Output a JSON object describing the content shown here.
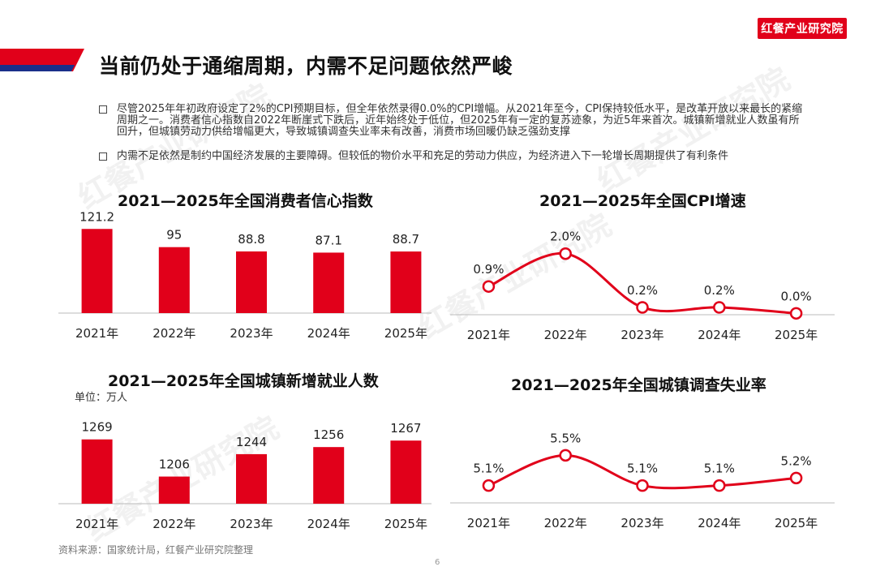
{
  "header": {
    "logo_text": "红餐产业研究院",
    "page_title": "当前仍处于通缩周期，内需不足问题依然严峻"
  },
  "bullets": [
    "尽管2025年年初政府设定了2%的CPI预期目标，但全年依然录得0.0%的CPI增幅。从2021年至今，CPI保持较低水平，是改革开放以来最长的紧缩周期之一。消费者信心指数自2022年断崖式下跌后，近年始终处于低位，但2025年有一定的复苏迹象，为近5年来首次。城镇新增就业人数虽有所回升，但城镇劳动力供给增幅更大，导致城镇调查失业率未有改善，消费市场回暖仍缺乏强劲支撑",
    "内需不足依然是制约中国经济发展的主要障碍。但较低的物价水平和充足的劳动力供应，为经济进入下一轮增长周期提供了有利条件"
  ],
  "chart_data": [
    {
      "id": "consumer-confidence",
      "type": "bar",
      "title": "2021—2025年全国消费者信心指数",
      "categories": [
        "2021年",
        "2022年",
        "2023年",
        "2024年",
        "2025年"
      ],
      "values": [
        121.2,
        95,
        88.8,
        87.1,
        88.7
      ],
      "value_labels": [
        "121.2",
        "95",
        "88.8",
        "87.1",
        "88.7"
      ],
      "ylim": [
        0,
        125
      ],
      "color": "#e1001a"
    },
    {
      "id": "cpi-growth",
      "type": "line",
      "title": "2021—2025年全国CPI增速",
      "categories": [
        "2021年",
        "2022年",
        "2023年",
        "2024年",
        "2025年"
      ],
      "values": [
        0.9,
        2.0,
        0.2,
        0.2,
        0.0
      ],
      "value_labels": [
        "0.9%",
        "2.0%",
        "0.2%",
        "0.2%",
        "0.0%"
      ],
      "ylim": [
        -0.1,
        2.4
      ],
      "color": "#e1001a"
    },
    {
      "id": "new-urban-jobs",
      "type": "bar",
      "title": "2021—2025年全国城镇新增就业人数",
      "unit": "单位：万人",
      "categories": [
        "2021年",
        "2022年",
        "2023年",
        "2024年",
        "2025年"
      ],
      "values": [
        1269,
        1206,
        1244,
        1256,
        1267
      ],
      "value_labels": [
        "1269",
        "1206",
        "1244",
        "1256",
        "1267"
      ],
      "ylim": [
        1160,
        1270
      ],
      "color": "#e1001a"
    },
    {
      "id": "urban-unemployment",
      "type": "line",
      "title": "2021—2025年全国城镇调查失业率",
      "categories": [
        "2021年",
        "2022年",
        "2023年",
        "2024年",
        "2025年"
      ],
      "values": [
        5.1,
        5.5,
        5.1,
        5.1,
        5.2
      ],
      "value_labels": [
        "5.1%",
        "5.5%",
        "5.1%",
        "5.1%",
        "5.2%"
      ],
      "ylim": [
        4.85,
        5.75
      ],
      "color": "#e1001a"
    }
  ],
  "footer": {
    "source": "资料来源：国家统计局，红餐产业研究院整理",
    "page_number": "6"
  },
  "watermark_text": "红餐产业研究院"
}
